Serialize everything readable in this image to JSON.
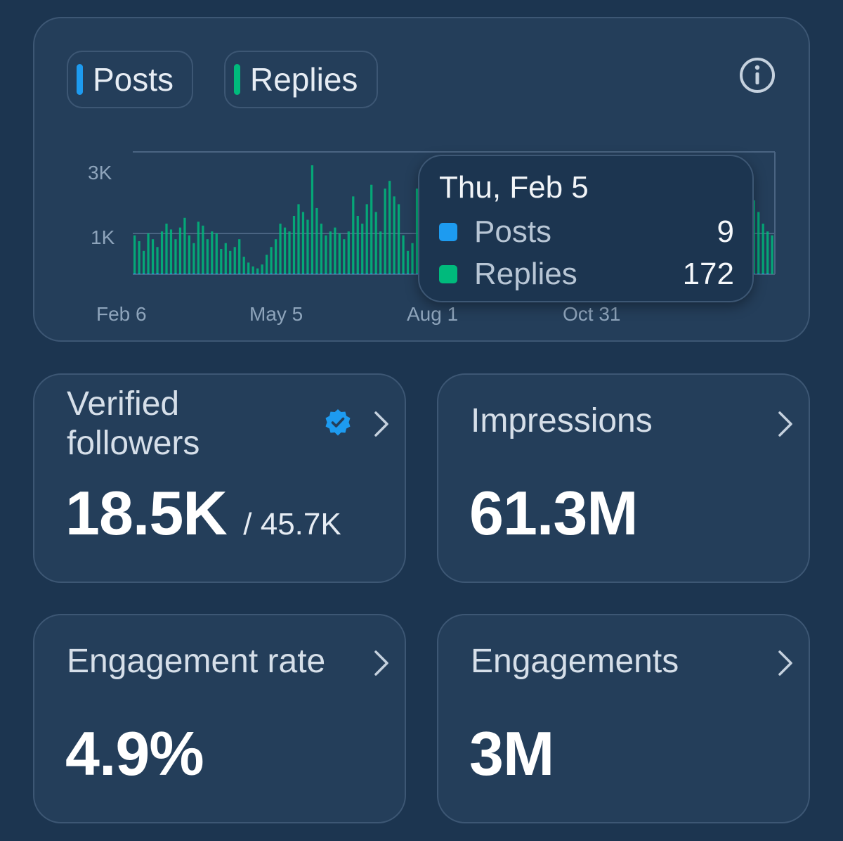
{
  "legend": {
    "posts": {
      "label": "Posts",
      "color": "#1d9bf0"
    },
    "replies": {
      "label": "Replies",
      "color": "#00ba7c"
    }
  },
  "info_icon": "info-circle-icon",
  "chart_data": {
    "type": "bar",
    "y_ticks": [
      "3K",
      "1K"
    ],
    "x_ticks": [
      "Feb 6",
      "May 5",
      "Aug 1",
      "Oct 31"
    ],
    "ylim": [
      0,
      3000
    ],
    "series": [
      {
        "name": "Posts",
        "color": "#1d9bf0",
        "values": [
          20,
          15,
          10,
          12,
          18,
          25,
          9,
          14,
          16,
          22,
          11,
          13,
          17,
          20,
          12,
          8,
          10,
          15,
          18,
          14,
          9,
          11,
          13,
          16,
          12,
          10,
          14,
          18,
          20,
          15,
          12,
          9,
          11,
          14,
          16,
          12,
          10,
          13,
          15,
          11,
          9,
          12,
          14,
          10,
          8,
          11,
          13,
          9,
          12,
          10,
          14,
          16,
          12,
          9,
          11,
          13,
          10,
          12,
          9,
          11,
          15,
          12,
          10,
          8,
          9,
          11,
          13,
          10,
          12,
          14,
          11,
          9,
          10,
          12,
          13,
          11,
          9,
          10,
          12,
          14,
          11,
          10,
          9,
          12,
          13,
          11,
          10,
          12,
          9,
          11,
          13,
          12,
          10,
          14,
          11,
          9,
          12,
          10,
          11,
          13,
          12,
          9,
          10,
          11,
          12,
          14,
          10,
          12,
          11,
          9,
          10,
          12,
          13,
          11,
          10,
          9,
          12,
          11,
          13,
          10,
          12,
          9,
          11,
          10,
          12,
          13,
          11,
          9,
          10,
          12,
          11,
          10,
          9,
          12,
          13,
          11,
          10,
          12,
          11,
          9
        ]
      },
      {
        "name": "Replies",
        "color": "#00ba7c",
        "values": [
          1000,
          850,
          600,
          1050,
          900,
          700,
          1100,
          1300,
          1150,
          900,
          1200,
          1450,
          1000,
          800,
          1350,
          1250,
          900,
          1100,
          1050,
          650,
          800,
          600,
          700,
          900,
          450,
          300,
          200,
          150,
          250,
          500,
          700,
          900,
          1300,
          1200,
          1100,
          1500,
          1800,
          1600,
          1400,
          2800,
          1700,
          1300,
          1000,
          1100,
          1200,
          1050,
          900,
          1100,
          2000,
          1500,
          1300,
          1800,
          2300,
          1600,
          1100,
          2200,
          2400,
          2000,
          1800,
          1000,
          600,
          800,
          2200,
          1700,
          1300,
          1000,
          900,
          100,
          0,
          0,
          0,
          0,
          0,
          0,
          50,
          0,
          50,
          200,
          100,
          350,
          150,
          50,
          0,
          0,
          200,
          100,
          1200,
          1000,
          900,
          1300,
          1450,
          1100,
          1400,
          1700,
          1200,
          900,
          600,
          1300,
          1500,
          1300,
          1150,
          1000,
          1300,
          1800,
          1200,
          1000,
          1600,
          1100,
          900,
          1200,
          1500,
          1350,
          1000,
          800,
          1100,
          1000,
          1350,
          900,
          600,
          1100,
          1500,
          1200,
          950,
          800,
          600,
          1000,
          900,
          1200,
          700,
          800,
          1100,
          900,
          1300,
          1700,
          1500,
          2200,
          1900,
          1600,
          1300,
          1100,
          1000
        ]
      }
    ]
  },
  "tooltip": {
    "date": "Thu, Feb 5",
    "posts_label": "Posts",
    "posts_value": "9",
    "replies_label": "Replies",
    "replies_value": "172",
    "posts_color": "#1d9bf0",
    "replies_color": "#00ba7c"
  },
  "cards": {
    "verified": {
      "label_line1": "Verified",
      "label_line2": "followers",
      "value": "18.5K",
      "total": "/ 45.7K",
      "badge": "verified-badge-icon"
    },
    "impressions": {
      "label": "Impressions",
      "value": "61.3M"
    },
    "engagement_rate": {
      "label": "Engagement rate",
      "value": "4.9%"
    },
    "engagements": {
      "label": "Engagements",
      "value": "3M"
    }
  }
}
